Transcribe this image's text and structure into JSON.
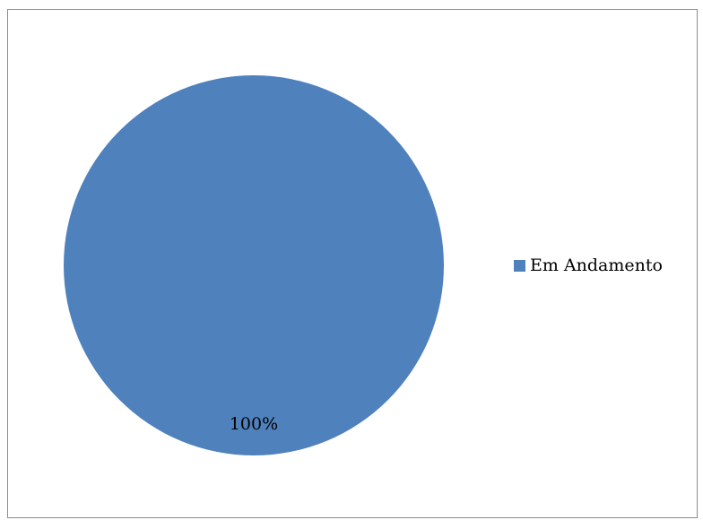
{
  "chart_data": {
    "type": "pie",
    "title": "",
    "categories": [
      "Em Andamento"
    ],
    "values": [
      100
    ],
    "data_labels": [
      "100%"
    ],
    "colors": [
      "#4f81bd"
    ],
    "legend": {
      "position": "right",
      "entries": [
        "Em Andamento"
      ]
    }
  }
}
